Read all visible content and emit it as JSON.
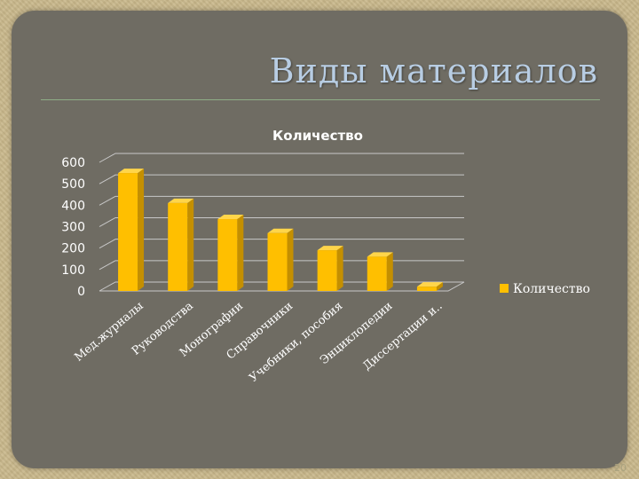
{
  "slide": {
    "title": "Виды материалов",
    "page_number": "20"
  },
  "colors": {
    "panel": "#6f6c63",
    "title": "#b8cde3",
    "bar": "#ffbf00",
    "bar_side": "#c48f00",
    "bar_top": "#ffd54a",
    "grid": "#c8c8c8"
  },
  "chart_data": {
    "type": "bar",
    "title": "Количество",
    "categories": [
      "Мед.журналы",
      "Руководства",
      "Монографии",
      "Справочники",
      "Учебники, пособия",
      "Энциклопедии",
      "Диссертации и.."
    ],
    "series": [
      {
        "name": "Количество",
        "values": [
          550,
          410,
          335,
          270,
          190,
          160,
          20
        ]
      }
    ],
    "ylim": [
      0,
      600
    ],
    "yticks": [
      "0",
      "100",
      "200",
      "300",
      "400",
      "500",
      "600"
    ],
    "grid": true,
    "legend": "right",
    "style": "3d-column"
  }
}
